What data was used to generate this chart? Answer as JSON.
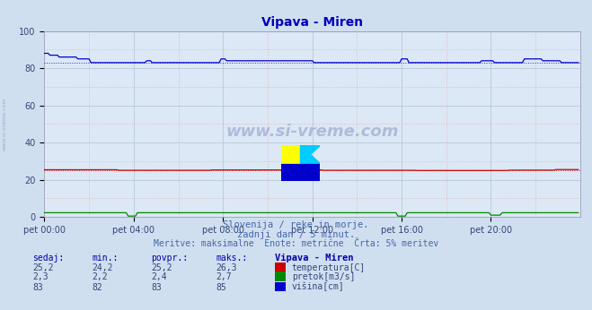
{
  "title": "Vipava - Miren",
  "title_color": "#0000bb",
  "bg_color": "#d0dff0",
  "plot_bg_color": "#dce8f5",
  "xlim": [
    0,
    288
  ],
  "ylim": [
    0,
    100
  ],
  "yticks": [
    0,
    20,
    40,
    60,
    80,
    100
  ],
  "xtick_labels": [
    "pet 00:00",
    "pet 04:00",
    "pet 08:00",
    "pet 12:00",
    "pet 16:00",
    "pet 20:00"
  ],
  "xtick_positions": [
    0,
    48,
    96,
    144,
    192,
    240
  ],
  "temp_color": "#cc0000",
  "flow_color": "#008800",
  "height_color": "#0000cc",
  "avg_height": 83,
  "avg_temp": 25.2,
  "watermark": "www.si-vreme.com",
  "subtitle1": "Slovenija / reke in morje.",
  "subtitle2": "zadnji dan / 5 minut.",
  "subtitle3": "Meritve: maksimalne  Enote: metrične  Črta: 5% meritev",
  "header_sedaj": "sedaj:",
  "header_min": "min.:",
  "header_povpr": "povpr.:",
  "header_maks": "maks.:",
  "header_station": "Vipava - Miren",
  "row1": [
    "25,2",
    "24,2",
    "25,2",
    "26,3",
    "temperatura[C]"
  ],
  "row2": [
    "2,3",
    "2,2",
    "2,4",
    "2,7",
    "pretok[m3/s]"
  ],
  "row3": [
    "83",
    "82",
    "83",
    "85",
    "višina[cm]"
  ],
  "sidebar_text": "www.si-vreme.com",
  "text_color": "#334477",
  "label_color": "#4466aa",
  "header_color": "#0000aa"
}
